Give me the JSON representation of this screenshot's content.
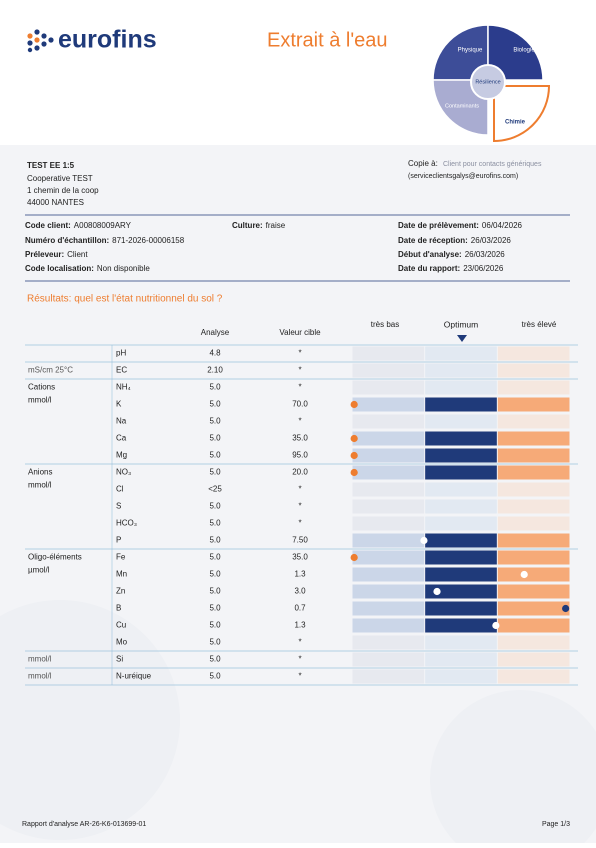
{
  "header": {
    "logo": "eurofins",
    "title": "Extrait à l'eau",
    "puzzle": [
      "Physique",
      "Biologie",
      "Résilience",
      "Contaminants",
      "Chimie"
    ]
  },
  "client": {
    "name": "TEST EE 1:5",
    "lines": [
      "Cooperative TEST",
      "1 chemin de la coop",
      "44000 NANTES"
    ]
  },
  "copy": {
    "label": "Copie à:",
    "recipient": "Client pour contacts génériques",
    "email": "(serviceclientsgalys@eurofins.com)"
  },
  "info": [
    {
      "label": "Code client:",
      "value": "A00808009ARY"
    },
    {
      "label": "Culture:",
      "value": "fraise"
    },
    {
      "label": "Date de prélèvement:",
      "value": "06/04/2026"
    },
    {
      "label": "Numéro d'échantillon:",
      "value": "871-2026-00006158"
    },
    {
      "label": "Date de réception:",
      "value": "26/03/2026"
    },
    {
      "label": "Préleveur:",
      "value": "Client"
    },
    {
      "label": "Début d'analyse:",
      "value": "26/03/2026"
    },
    {
      "label": "Code localisation:",
      "value": "Non disponible"
    },
    {
      "label": "Date du rapport:",
      "value": "23/06/2026"
    }
  ],
  "results": {
    "title": "Résultats: quel est l'état nutritionnel du sol ?",
    "columns": {
      "analysis": "Analyse",
      "target": "Valeur cible",
      "low": "très bas",
      "optimum": "Optimum",
      "high": "très élevé"
    },
    "rows": [
      {
        "param": "pH",
        "analysis": "4.8",
        "target": "*",
        "gauge_position": null
      },
      {
        "unit": "mS/cm 25°C",
        "param": "EC",
        "analysis": "2.10",
        "target": "*",
        "gauge_position": null
      },
      {
        "group": "Cations",
        "unit": "mmol/l",
        "param": "NH₄",
        "analysis": "5.0",
        "target": "*",
        "gauge_position": null
      },
      {
        "param": "K",
        "analysis": "5.0",
        "target": "70.0",
        "gauge_position": 1,
        "marker_color": "#ee7d2f"
      },
      {
        "param": "Na",
        "analysis": "5.0",
        "target": "*",
        "gauge_position": null
      },
      {
        "param": "Ca",
        "analysis": "5.0",
        "target": "35.0",
        "gauge_position": 1,
        "marker_color": "#ee7d2f"
      },
      {
        "param": "Mg",
        "analysis": "5.0",
        "target": "95.0",
        "gauge_position": 1,
        "marker_color": "#ee7d2f"
      },
      {
        "group": "Anions",
        "unit": "mmol/l",
        "param": "NO₃",
        "analysis": "5.0",
        "target": "20.0",
        "gauge_position": 1,
        "marker_color": "#ee7d2f"
      },
      {
        "param": "Cl",
        "analysis": "<25",
        "target": "*",
        "gauge_position": null
      },
      {
        "param": "S",
        "analysis": "5.0",
        "target": "*",
        "gauge_position": null
      },
      {
        "param": "HCO₃",
        "analysis": "5.0",
        "target": "*",
        "gauge_position": null
      },
      {
        "param": "P",
        "analysis": "5.0",
        "target": "7.50",
        "gauge_position": 33,
        "marker_color": "#ffffff"
      },
      {
        "group": "Oligo-éléments",
        "unit": "µmol/l",
        "param": "Fe",
        "analysis": "5.0",
        "target": "35.0",
        "gauge_position": 1,
        "marker_color": "#ee7d2f"
      },
      {
        "param": "Mn",
        "analysis": "5.0",
        "target": "1.3",
        "gauge_position": 79,
        "marker_color": "#ffffff"
      },
      {
        "param": "Zn",
        "analysis": "5.0",
        "target": "3.0",
        "gauge_position": 39,
        "marker_color": "#ffffff"
      },
      {
        "param": "B",
        "analysis": "5.0",
        "target": "0.7",
        "gauge_position": 98,
        "marker_color": "#1f3a7a"
      },
      {
        "param": "Cu",
        "analysis": "5.0",
        "target": "1.3",
        "gauge_position": 66,
        "marker_color": "#ffffff"
      },
      {
        "param": "Mo",
        "analysis": "5.0",
        "target": "*",
        "gauge_position": null
      },
      {
        "unit": "mmol/l",
        "param": "Si",
        "analysis": "5.0",
        "target": "*",
        "gauge_position": null
      },
      {
        "unit": "mmol/l",
        "param": "N-uréique",
        "analysis": "5.0",
        "target": "*",
        "gauge_position": null
      }
    ]
  },
  "footer": {
    "report": "Rapport d'analyse AR-26-K6-013699-01",
    "page": "Page 1/3"
  }
}
